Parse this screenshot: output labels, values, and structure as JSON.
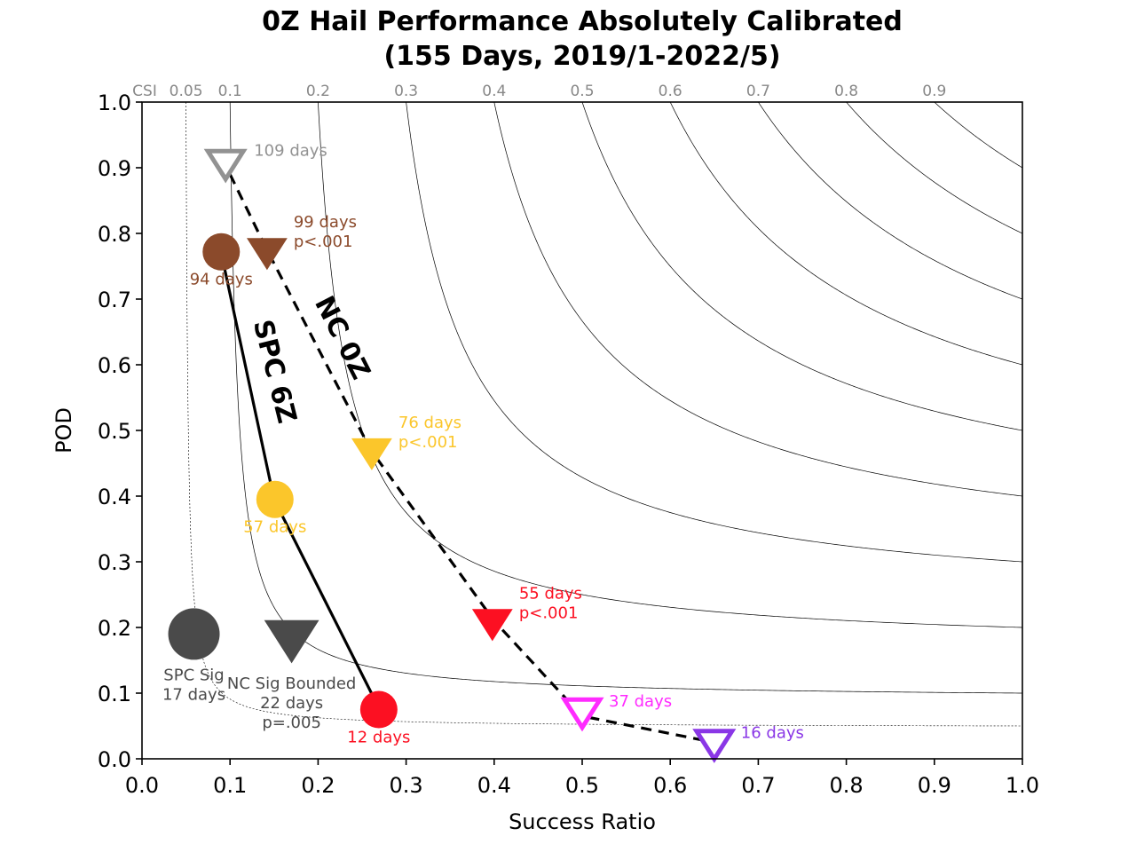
{
  "chart_data": {
    "type": "scatter",
    "title": [
      "0Z Hail Performance Absolutely Calibrated",
      "(155 Days, 2019/1-2022/5)"
    ],
    "xlabel": "Success Ratio",
    "ylabel": "POD",
    "xlim": [
      0,
      1
    ],
    "ylim": [
      0,
      1
    ],
    "x_ticks": [
      "0.0",
      "0.1",
      "0.2",
      "0.3",
      "0.4",
      "0.5",
      "0.6",
      "0.7",
      "0.8",
      "0.9",
      "1.0"
    ],
    "y_ticks": [
      "0.0",
      "0.1",
      "0.2",
      "0.3",
      "0.4",
      "0.5",
      "0.6",
      "0.7",
      "0.8",
      "0.9",
      "1.0"
    ],
    "csi_label": "CSI",
    "csi_levels": [
      0.05,
      0.1,
      0.2,
      0.3,
      0.4,
      0.5,
      0.6,
      0.7,
      0.8,
      0.9
    ],
    "csi_tick_labels": [
      "0.05",
      "0.1",
      "0.2",
      "0.3",
      "0.4",
      "0.5",
      "0.6",
      "0.7",
      "0.8",
      "0.9"
    ],
    "lines": [
      {
        "label": "SPC 6Z",
        "style": "solid",
        "points": [
          [
            0.09,
            0.77
          ],
          [
            0.15,
            0.395
          ],
          [
            0.27,
            0.075
          ]
        ]
      },
      {
        "label": "NC 0Z",
        "style": "dashed",
        "points": [
          [
            0.1,
            0.89
          ],
          [
            0.14,
            0.78
          ],
          [
            0.26,
            0.47
          ],
          [
            0.4,
            0.21
          ],
          [
            0.5,
            0.065
          ],
          [
            0.65,
            0.025
          ]
        ]
      }
    ],
    "points": [
      {
        "series": "SPC",
        "marker": "circle",
        "x": 0.09,
        "y": 0.772,
        "color": "#8b4a2b",
        "label": [
          "94 days"
        ]
      },
      {
        "series": "SPC",
        "marker": "circle",
        "x": 0.151,
        "y": 0.395,
        "color": "#fbc62b",
        "label": [
          "57 days"
        ]
      },
      {
        "series": "SPC",
        "marker": "circle",
        "x": 0.269,
        "y": 0.075,
        "color": "#fc1022",
        "label": [
          "12 days"
        ]
      },
      {
        "series": "SPC Sig",
        "marker": "circle-large",
        "x": 0.059,
        "y": 0.19,
        "color": "#4a4a4a",
        "label": [
          "SPC Sig",
          "17 days"
        ]
      },
      {
        "series": "NC",
        "marker": "triangle-open",
        "x": 0.095,
        "y": 0.905,
        "color": "#929292",
        "label": [
          "109 days"
        ]
      },
      {
        "series": "NC",
        "marker": "triangle",
        "x": 0.142,
        "y": 0.77,
        "color": "#8b4a2b",
        "label": [
          "99 days",
          "p<.001"
        ]
      },
      {
        "series": "NC",
        "marker": "triangle",
        "x": 0.261,
        "y": 0.465,
        "color": "#fbc62b",
        "label": [
          "76 days",
          "p<.001"
        ]
      },
      {
        "series": "NC",
        "marker": "triangle",
        "x": 0.398,
        "y": 0.205,
        "color": "#fc1022",
        "label": [
          "55 days",
          "p<.001"
        ]
      },
      {
        "series": "NC",
        "marker": "triangle-open",
        "x": 0.5,
        "y": 0.07,
        "color": "#ff2bff",
        "label": [
          "37 days"
        ]
      },
      {
        "series": "NC",
        "marker": "triangle-open",
        "x": 0.65,
        "y": 0.022,
        "color": "#8a37e6",
        "label": [
          "16 days"
        ]
      },
      {
        "series": "NC Sig Bounded",
        "marker": "triangle-large",
        "x": 0.17,
        "y": 0.18,
        "color": "#4a4a4a",
        "label": [
          "NC Sig Bounded",
          "22 days",
          "p=.005"
        ]
      }
    ],
    "grid": false
  }
}
